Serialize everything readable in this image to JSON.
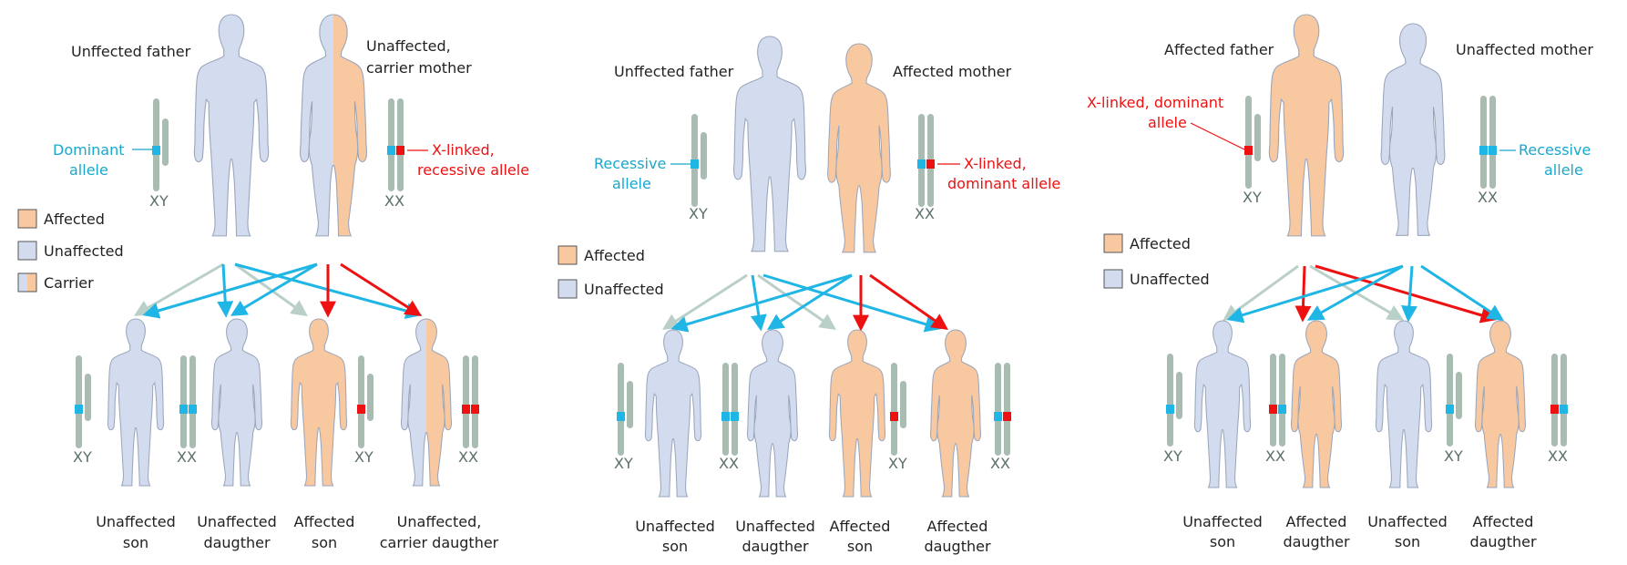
{
  "colors": {
    "affected": "#f8c8a0",
    "unaffected": "#d3dcee",
    "outline": "#9aa6bb",
    "chromosome": "#a9bcb1",
    "dominant_blue": "#1fb6e6",
    "recessive_red": "#ee1111",
    "arrow_gray": "#b9cfc8"
  },
  "panels": [
    {
      "father_label": "Unffected father",
      "mother_label_1": "Unaffected,",
      "mother_label_2": "carrier mother",
      "father_allele_1": "Dominant",
      "father_allele_2": "allele",
      "mother_allele_1": "X-linked,",
      "mother_allele_2": "recessive allele",
      "father_chrom": "XY",
      "mother_chrom": "XX",
      "legend": [
        "Affected",
        "Unaffected",
        "Carrier"
      ],
      "children": [
        {
          "l1": "Unaffected",
          "l2": "son",
          "chrom": "XY"
        },
        {
          "l1": "Unaffected",
          "l2": "daugther",
          "chrom": "XX"
        },
        {
          "l1": "Affected",
          "l2": "son",
          "chrom": "XY"
        },
        {
          "l1": "Unaffected,",
          "l2": "carrier daugther",
          "chrom": "XX"
        }
      ]
    },
    {
      "father_label": "Unffected father",
      "mother_label": "Affected mother",
      "father_allele_1": "Recessive",
      "father_allele_2": "allele",
      "mother_allele_1": "X-linked,",
      "mother_allele_2": "dominant allele",
      "father_chrom": "XY",
      "mother_chrom": "XX",
      "legend": [
        "Affected",
        "Unaffected"
      ],
      "children": [
        {
          "l1": "Unaffected",
          "l2": "son",
          "chrom": "XY"
        },
        {
          "l1": "Unaffected",
          "l2": "daugther",
          "chrom": "XX"
        },
        {
          "l1": "Affected",
          "l2": "son",
          "chrom": "XY"
        },
        {
          "l1": "Affected",
          "l2": "daugther",
          "chrom": "XX"
        }
      ]
    },
    {
      "father_label": "Affected father",
      "mother_label": "Unaffected mother",
      "father_allele_1": "X-linked, dominant",
      "father_allele_2": "allele",
      "mother_allele_1": "Recessive",
      "mother_allele_2": "allele",
      "father_chrom": "XY",
      "mother_chrom": "XX",
      "legend": [
        "Affected",
        "Unaffected"
      ],
      "children": [
        {
          "l1": "Unaffected",
          "l2": "son",
          "chrom": "XY"
        },
        {
          "l1": "Affected",
          "l2": "daugther",
          "chrom": "XX"
        },
        {
          "l1": "Unaffected",
          "l2": "son",
          "chrom": "XY"
        },
        {
          "l1": "Affected",
          "l2": "daugther",
          "chrom": "XX"
        }
      ]
    }
  ]
}
